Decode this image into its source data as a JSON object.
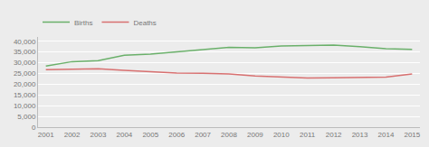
{
  "chart_data": {
    "type": "line",
    "x": [
      2001,
      2002,
      2003,
      2004,
      2005,
      2006,
      2007,
      2008,
      2009,
      2010,
      2011,
      2012,
      2013,
      2014,
      2015
    ],
    "series": [
      {
        "name": "Births",
        "color": "#6ab06a",
        "values": [
          28500,
          30500,
          31000,
          33500,
          34000,
          35000,
          36000,
          37200,
          37000,
          37800,
          38000,
          38200,
          37500,
          36500,
          36200
        ]
      },
      {
        "name": "Deaths",
        "color": "#d87070",
        "values": [
          26800,
          27000,
          27200,
          26500,
          25800,
          25200,
          25100,
          24800,
          23800,
          23200,
          22900,
          23000,
          23200,
          23300,
          24800
        ]
      }
    ],
    "xlim": [
      2000.7,
      2015.3
    ],
    "xticks": [
      2001,
      2002,
      2003,
      2004,
      2005,
      2006,
      2007,
      2008,
      2009,
      2010,
      2011,
      2012,
      2013,
      2014,
      2015
    ],
    "ylim": [
      0,
      42000
    ],
    "yticks": [
      0,
      {
        "value": 5000,
        "label": "5,000"
      },
      {
        "value": 10000,
        "label": "10,000"
      },
      {
        "value": 15000,
        "label": "15,000"
      },
      {
        "value": 20000,
        "label": "20,000"
      },
      {
        "value": 25000,
        "label": "25,000"
      },
      {
        "value": 30000,
        "label": "30,000"
      },
      {
        "value": 35000,
        "label": "35,000"
      },
      {
        "value": 40000,
        "label": "40,000"
      }
    ],
    "grid": "y",
    "legend": "upper left"
  }
}
